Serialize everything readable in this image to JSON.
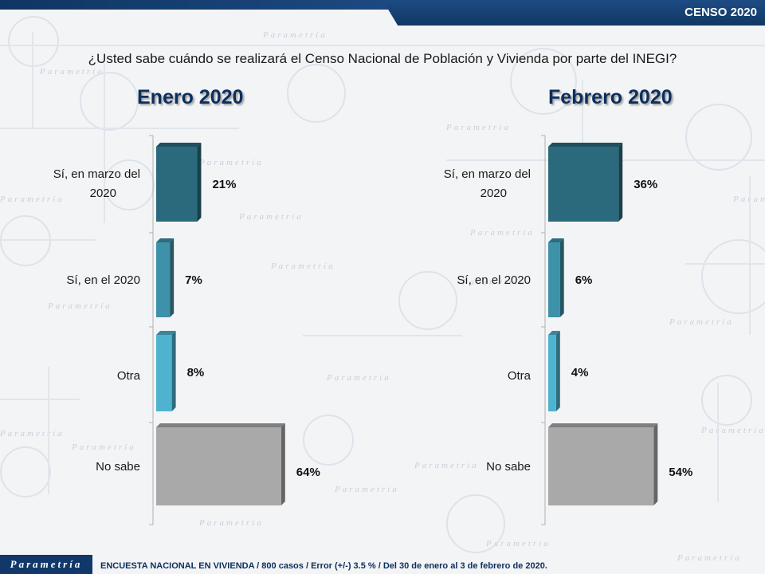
{
  "header": {
    "badge": "CENSO 2020"
  },
  "question": "¿Usted sabe cuándo se realizará el Censo Nacional de Población y Vivienda por parte del INEGI?",
  "watermark": {
    "brand": "Parametría"
  },
  "footer": {
    "brand": "Parametría",
    "note": "ENCUESTA NACIONAL EN VIVIENDA / 800 casos / Error (+/-) 3.5 % / Del 30 de enero al 3 de febrero de 2020."
  },
  "colors": {
    "dark_teal": "#2a6a7c",
    "mid_teal": "#3d91a8",
    "light_teal": "#4fb3cf",
    "gray": "#a9a9a9",
    "navy": "#0c2f5c"
  },
  "chart_data": [
    {
      "type": "bar",
      "orientation": "horizontal",
      "title": "Enero 2020",
      "categories": [
        "Sí, en marzo del 2020",
        "Sí, en el 2020",
        "Otra",
        "No sabe"
      ],
      "values": [
        21,
        7,
        8,
        64
      ],
      "value_labels": [
        "21%",
        "7%",
        "8%",
        "64%"
      ],
      "bar_colors": [
        "#2a6a7c",
        "#3d91a8",
        "#4fb3cf",
        "#a9a9a9"
      ],
      "grid": false
    },
    {
      "type": "bar",
      "orientation": "horizontal",
      "title": "Febrero 2020",
      "categories": [
        "Sí, en marzo del 2020",
        "Sí, en el 2020",
        "Otra",
        "No sabe"
      ],
      "values": [
        36,
        6,
        4,
        54
      ],
      "value_labels": [
        "36%",
        "6%",
        "4%",
        "54%"
      ],
      "bar_colors": [
        "#2a6a7c",
        "#3d91a8",
        "#4fb3cf",
        "#a9a9a9"
      ],
      "grid": false
    }
  ]
}
